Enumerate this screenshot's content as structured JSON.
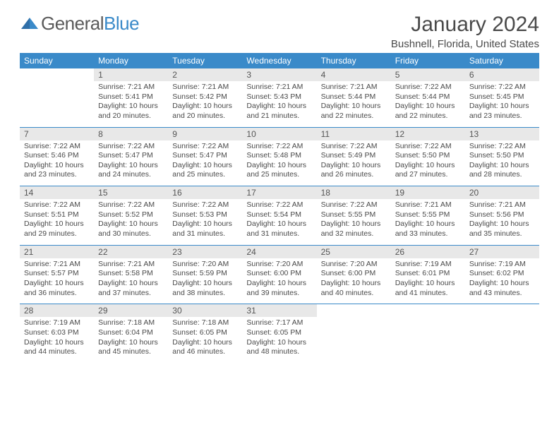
{
  "brand": {
    "part1": "General",
    "part2": "Blue"
  },
  "title": "January 2024",
  "location": "Bushnell, Florida, United States",
  "colors": {
    "accent": "#3a8ac9",
    "daynum_bg": "#e8e8e8",
    "text": "#4a4a4a",
    "bg": "#ffffff"
  },
  "weekdays": [
    "Sunday",
    "Monday",
    "Tuesday",
    "Wednesday",
    "Thursday",
    "Friday",
    "Saturday"
  ],
  "layout": {
    "first_weekday_index": 1,
    "days_in_month": 31,
    "rows": 5,
    "cols": 7
  },
  "days": {
    "1": {
      "sunrise": "7:21 AM",
      "sunset": "5:41 PM",
      "daylight": "10 hours and 20 minutes."
    },
    "2": {
      "sunrise": "7:21 AM",
      "sunset": "5:42 PM",
      "daylight": "10 hours and 20 minutes."
    },
    "3": {
      "sunrise": "7:21 AM",
      "sunset": "5:43 PM",
      "daylight": "10 hours and 21 minutes."
    },
    "4": {
      "sunrise": "7:21 AM",
      "sunset": "5:44 PM",
      "daylight": "10 hours and 22 minutes."
    },
    "5": {
      "sunrise": "7:22 AM",
      "sunset": "5:44 PM",
      "daylight": "10 hours and 22 minutes."
    },
    "6": {
      "sunrise": "7:22 AM",
      "sunset": "5:45 PM",
      "daylight": "10 hours and 23 minutes."
    },
    "7": {
      "sunrise": "7:22 AM",
      "sunset": "5:46 PM",
      "daylight": "10 hours and 23 minutes."
    },
    "8": {
      "sunrise": "7:22 AM",
      "sunset": "5:47 PM",
      "daylight": "10 hours and 24 minutes."
    },
    "9": {
      "sunrise": "7:22 AM",
      "sunset": "5:47 PM",
      "daylight": "10 hours and 25 minutes."
    },
    "10": {
      "sunrise": "7:22 AM",
      "sunset": "5:48 PM",
      "daylight": "10 hours and 25 minutes."
    },
    "11": {
      "sunrise": "7:22 AM",
      "sunset": "5:49 PM",
      "daylight": "10 hours and 26 minutes."
    },
    "12": {
      "sunrise": "7:22 AM",
      "sunset": "5:50 PM",
      "daylight": "10 hours and 27 minutes."
    },
    "13": {
      "sunrise": "7:22 AM",
      "sunset": "5:50 PM",
      "daylight": "10 hours and 28 minutes."
    },
    "14": {
      "sunrise": "7:22 AM",
      "sunset": "5:51 PM",
      "daylight": "10 hours and 29 minutes."
    },
    "15": {
      "sunrise": "7:22 AM",
      "sunset": "5:52 PM",
      "daylight": "10 hours and 30 minutes."
    },
    "16": {
      "sunrise": "7:22 AM",
      "sunset": "5:53 PM",
      "daylight": "10 hours and 31 minutes."
    },
    "17": {
      "sunrise": "7:22 AM",
      "sunset": "5:54 PM",
      "daylight": "10 hours and 31 minutes."
    },
    "18": {
      "sunrise": "7:22 AM",
      "sunset": "5:55 PM",
      "daylight": "10 hours and 32 minutes."
    },
    "19": {
      "sunrise": "7:21 AM",
      "sunset": "5:55 PM",
      "daylight": "10 hours and 33 minutes."
    },
    "20": {
      "sunrise": "7:21 AM",
      "sunset": "5:56 PM",
      "daylight": "10 hours and 35 minutes."
    },
    "21": {
      "sunrise": "7:21 AM",
      "sunset": "5:57 PM",
      "daylight": "10 hours and 36 minutes."
    },
    "22": {
      "sunrise": "7:21 AM",
      "sunset": "5:58 PM",
      "daylight": "10 hours and 37 minutes."
    },
    "23": {
      "sunrise": "7:20 AM",
      "sunset": "5:59 PM",
      "daylight": "10 hours and 38 minutes."
    },
    "24": {
      "sunrise": "7:20 AM",
      "sunset": "6:00 PM",
      "daylight": "10 hours and 39 minutes."
    },
    "25": {
      "sunrise": "7:20 AM",
      "sunset": "6:00 PM",
      "daylight": "10 hours and 40 minutes."
    },
    "26": {
      "sunrise": "7:19 AM",
      "sunset": "6:01 PM",
      "daylight": "10 hours and 41 minutes."
    },
    "27": {
      "sunrise": "7:19 AM",
      "sunset": "6:02 PM",
      "daylight": "10 hours and 43 minutes."
    },
    "28": {
      "sunrise": "7:19 AM",
      "sunset": "6:03 PM",
      "daylight": "10 hours and 44 minutes."
    },
    "29": {
      "sunrise": "7:18 AM",
      "sunset": "6:04 PM",
      "daylight": "10 hours and 45 minutes."
    },
    "30": {
      "sunrise": "7:18 AM",
      "sunset": "6:05 PM",
      "daylight": "10 hours and 46 minutes."
    },
    "31": {
      "sunrise": "7:17 AM",
      "sunset": "6:05 PM",
      "daylight": "10 hours and 48 minutes."
    }
  },
  "labels": {
    "sunrise": "Sunrise:",
    "sunset": "Sunset:",
    "daylight": "Daylight:"
  }
}
